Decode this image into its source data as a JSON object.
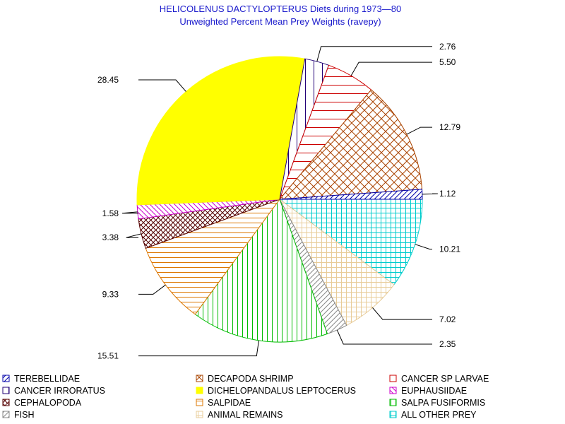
{
  "chart_data": {
    "type": "pie",
    "title": "HELICOLENUS DACTYLOPTERUS Diets during 1973—80",
    "subtitle": "Unweighted Percent Mean Prey Weights (ravepy)",
    "slices": [
      {
        "name": "ALL OTHER PREY",
        "value": 10.21,
        "label": "10.21",
        "color": "#00cccc",
        "pattern": "grid"
      },
      {
        "name": "ANIMAL REMAINS",
        "value": 7.02,
        "label": "7.02",
        "color": "#e8cc99",
        "pattern": "grid"
      },
      {
        "name": "FISH",
        "value": 2.35,
        "label": "2.35",
        "color": "#888888",
        "pattern": "diag"
      },
      {
        "name": "SALPA FUSIFORMIS",
        "value": 15.51,
        "label": "15.51",
        "color": "#00bb00",
        "pattern": "vert"
      },
      {
        "name": "SALPIDAE",
        "value": 9.33,
        "label": "9.33",
        "color": "#dd7700",
        "pattern": "horiz"
      },
      {
        "name": "CEPHALOPODA",
        "value": 3.38,
        "label": "3.38",
        "color": "#550000",
        "pattern": "cross"
      },
      {
        "name": "EUPHAUSIIDAE",
        "value": 1.58,
        "label": "1.58",
        "color": "#cc00cc",
        "pattern": "diag-back"
      },
      {
        "name": "DICHELOPANDALUS LEPTOCERUS",
        "value": 28.45,
        "label": "28.45",
        "color": "#ffff00",
        "pattern": "solid"
      },
      {
        "name": "CANCER IRRORATUS",
        "value": 2.76,
        "label": "2.76",
        "color": "#220077",
        "pattern": "vert-sparse"
      },
      {
        "name": "CANCER SP LARVAE",
        "value": 5.5,
        "label": "5.50",
        "color": "#cc0000",
        "pattern": "horiz-sparse"
      },
      {
        "name": "DECAPODA SHRIMP",
        "value": 12.79,
        "label": "12.79",
        "color": "#aa4400",
        "pattern": "cross-sparse"
      },
      {
        "name": "TEREBELLIDAE",
        "value": 1.12,
        "label": "1.12",
        "color": "#0000aa",
        "pattern": "diag"
      }
    ],
    "legend": {
      "placement": "bottom",
      "columns": [
        [
          "TEREBELLIDAE",
          "CANCER IRRORATUS",
          "CEPHALOPODA",
          "FISH"
        ],
        [
          "DECAPODA SHRIMP",
          "DICHELOPANDALUS LEPTOCERUS",
          "SALPIDAE",
          "ANIMAL REMAINS"
        ],
        [
          "CANCER SP LARVAE",
          "EUPHAUSIIDAE",
          "SALPA FUSIFORMIS",
          "ALL OTHER PREY"
        ]
      ]
    }
  }
}
